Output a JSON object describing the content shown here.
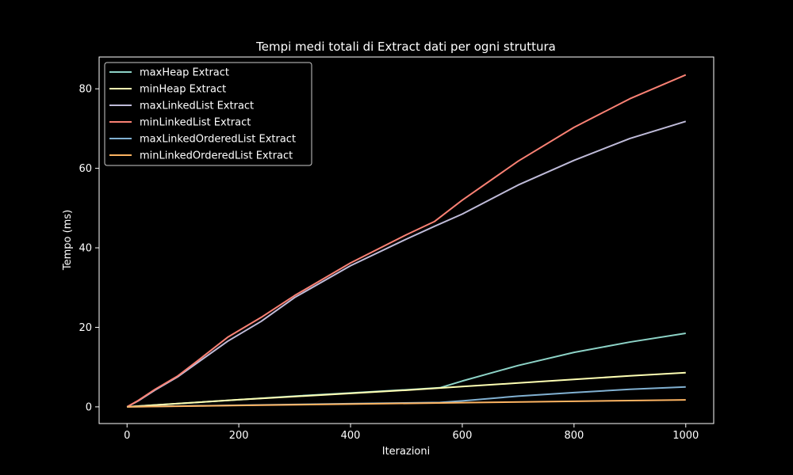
{
  "chart_data": {
    "type": "line",
    "title": "Tempi medi totali di Extract dati per ogni struttura",
    "xlabel": "Iterazioni",
    "ylabel": "Tempo (ms)",
    "xlim": [
      -50,
      1050
    ],
    "ylim": [
      -4.2,
      88
    ],
    "x_ticks": [
      0,
      200,
      400,
      600,
      800,
      1000
    ],
    "y_ticks": [
      0,
      20,
      40,
      60,
      80
    ],
    "grid": false,
    "legend_position": "top-left",
    "series": [
      {
        "name": "maxHeap Extract",
        "color": "#8dd3c7",
        "x": [
          0,
          100,
          200,
          300,
          400,
          500,
          560,
          600,
          700,
          800,
          900,
          1000
        ],
        "y": [
          0,
          0.9,
          1.8,
          2.7,
          3.5,
          4.3,
          4.8,
          6.5,
          10.4,
          13.7,
          16.3,
          18.5
        ]
      },
      {
        "name": "minHeap Extract",
        "color": "#feffb3",
        "x": [
          0,
          100,
          200,
          300,
          400,
          500,
          600,
          700,
          800,
          900,
          1000
        ],
        "y": [
          0,
          0.9,
          1.8,
          2.6,
          3.4,
          4.2,
          5.1,
          6.0,
          6.9,
          7.8,
          8.6
        ]
      },
      {
        "name": "maxLinkedList Extract",
        "color": "#bfbbd9",
        "x": [
          0,
          20,
          50,
          90,
          130,
          180,
          240,
          300,
          400,
          500,
          550,
          600,
          700,
          800,
          900,
          1000
        ],
        "y": [
          0,
          1.5,
          4.2,
          7.5,
          11.5,
          16.5,
          21.5,
          27.5,
          35.5,
          42.2,
          45.4,
          48.5,
          55.8,
          62.0,
          67.5,
          71.8
        ]
      },
      {
        "name": "minLinkedList Extract",
        "color": "#fa8174",
        "x": [
          0,
          20,
          50,
          90,
          130,
          180,
          240,
          300,
          400,
          500,
          550,
          600,
          700,
          800,
          900,
          1000
        ],
        "y": [
          0,
          1.6,
          4.4,
          7.7,
          12.0,
          17.5,
          22.5,
          28.0,
          36.2,
          43.3,
          46.6,
          52.0,
          61.8,
          70.3,
          77.5,
          83.5
        ]
      },
      {
        "name": "maxLinkedOrderedList Extract",
        "color": "#81b1d2",
        "x": [
          0,
          200,
          400,
          560,
          600,
          700,
          800,
          900,
          1000
        ],
        "y": [
          0,
          0.4,
          0.8,
          1.1,
          1.5,
          2.7,
          3.6,
          4.4,
          5.0
        ]
      },
      {
        "name": "minLinkedOrderedList Extract",
        "color": "#fdb462",
        "x": [
          0,
          200,
          400,
          600,
          800,
          1000
        ],
        "y": [
          0,
          0.35,
          0.7,
          1.05,
          1.4,
          1.75
        ]
      }
    ]
  }
}
